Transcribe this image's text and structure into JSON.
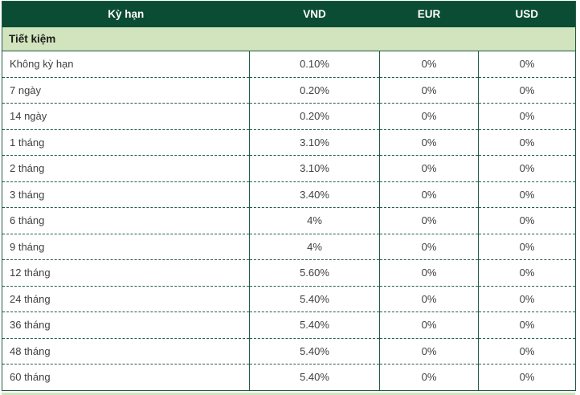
{
  "colors": {
    "header_bg": "#0b4c34",
    "section_bg": "#d2e4bd",
    "border": "#215c45",
    "header_text": "#ffffff",
    "cell_text": "#3f3f3f"
  },
  "table": {
    "columns": [
      {
        "label": "Kỳ hạn"
      },
      {
        "label": "VND"
      },
      {
        "label": "EUR"
      },
      {
        "label": "USD"
      }
    ],
    "section": {
      "label": "Tiết kiệm"
    },
    "rows": [
      {
        "term": "Không kỳ hạn",
        "vnd": "0.10%",
        "eur": "0%",
        "usd": "0%"
      },
      {
        "term": "7 ngày",
        "vnd": "0.20%",
        "eur": "0%",
        "usd": "0%"
      },
      {
        "term": "14 ngày",
        "vnd": "0.20%",
        "eur": "0%",
        "usd": "0%"
      },
      {
        "term": "1 tháng",
        "vnd": "3.10%",
        "eur": "0%",
        "usd": "0%"
      },
      {
        "term": "2 tháng",
        "vnd": "3.10%",
        "eur": "0%",
        "usd": "0%"
      },
      {
        "term": "3 tháng",
        "vnd": "3.40%",
        "eur": "0%",
        "usd": "0%"
      },
      {
        "term": "6 tháng",
        "vnd": "4%",
        "eur": "0%",
        "usd": "0%"
      },
      {
        "term": "9 tháng",
        "vnd": "4%",
        "eur": "0%",
        "usd": "0%"
      },
      {
        "term": "12 tháng",
        "vnd": "5.60%",
        "eur": "0%",
        "usd": "0%"
      },
      {
        "term": "24 tháng",
        "vnd": "5.40%",
        "eur": "0%",
        "usd": "0%"
      },
      {
        "term": "36 tháng",
        "vnd": "5.40%",
        "eur": "0%",
        "usd": "0%"
      },
      {
        "term": "48 tháng",
        "vnd": "5.40%",
        "eur": "0%",
        "usd": "0%"
      },
      {
        "term": "60 tháng",
        "vnd": "5.40%",
        "eur": "0%",
        "usd": "0%"
      }
    ]
  }
}
